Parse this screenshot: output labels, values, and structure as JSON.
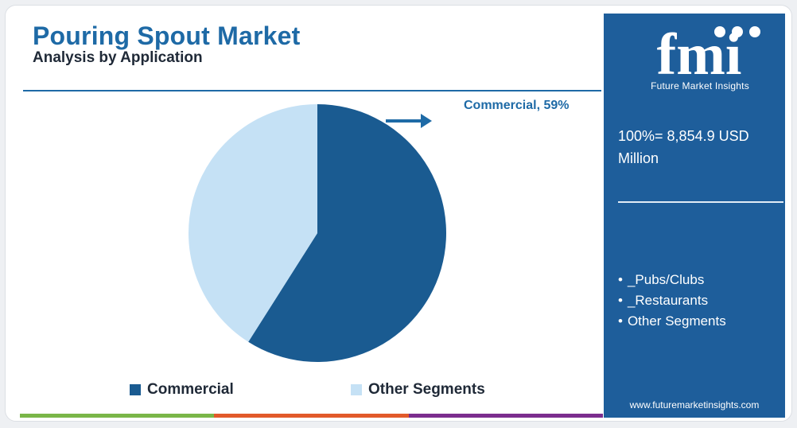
{
  "header": {
    "title": "Pouring Spout Market",
    "subtitle": "Analysis by Application"
  },
  "chart_data": {
    "type": "pie",
    "title": "Pouring Spout Market",
    "subtitle": "Analysis by Application",
    "categories": [
      "Commercial",
      "Other Segments"
    ],
    "values": [
      59,
      41
    ],
    "unit": "%",
    "colors": [
      "#1a5b91",
      "#c5e1f5"
    ],
    "callout": "Commercial, 59%",
    "legend": [
      "Commercial",
      "Other Segments"
    ],
    "legend_position": "bottom"
  },
  "sidebar": {
    "logo_text": "fmi",
    "logo_tagline": "Future Market Insights",
    "total_text": "100%= 8,854.9 USD Million",
    "segments": [
      "_Pubs/Clubs",
      "_Restaurants",
      "Other Segments"
    ],
    "website": "www.futuremarketinsights.com",
    "background": "#1e5e9b"
  },
  "bottom_bar_colors": [
    "#7ab648",
    "#e25a2a",
    "#7b2d8e"
  ]
}
